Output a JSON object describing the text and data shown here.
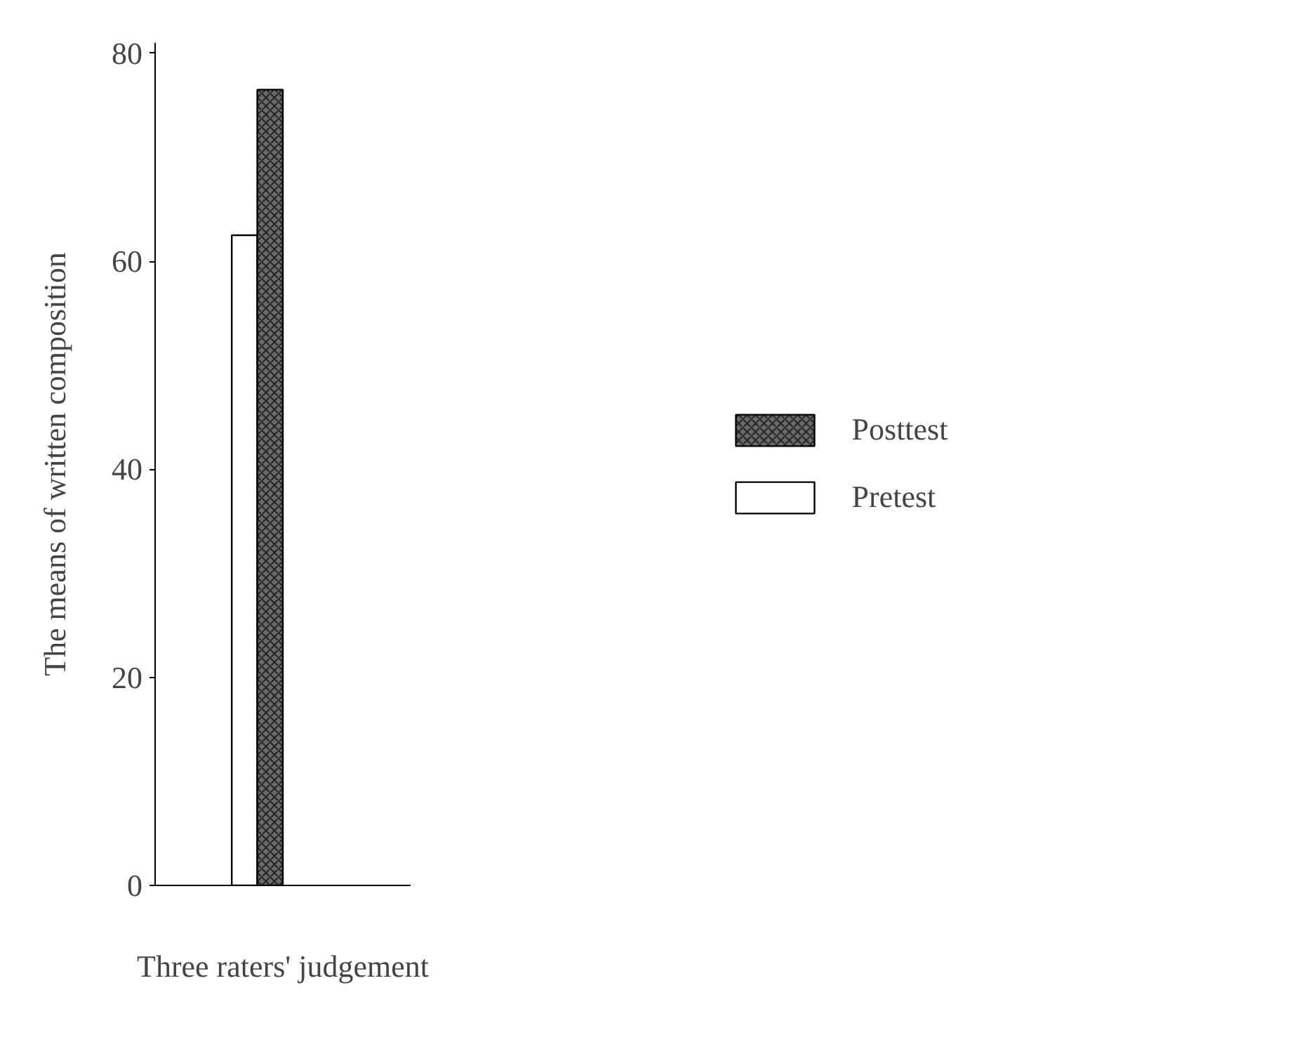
{
  "chart_data": {
    "type": "bar",
    "xlabel": "Three raters' judgement",
    "ylabel": "The means of written composition",
    "categories": [
      null
    ],
    "series": [
      {
        "name": "Pretest",
        "color": "#ffffff",
        "values": [
          62.5
        ]
      },
      {
        "name": "Posttest",
        "color": "#6a6a6a",
        "values": [
          76.5
        ]
      }
    ],
    "ylim": [
      0,
      81
    ],
    "yticks": [
      0,
      20,
      40,
      60,
      80
    ],
    "grid": false,
    "legend": "right"
  }
}
